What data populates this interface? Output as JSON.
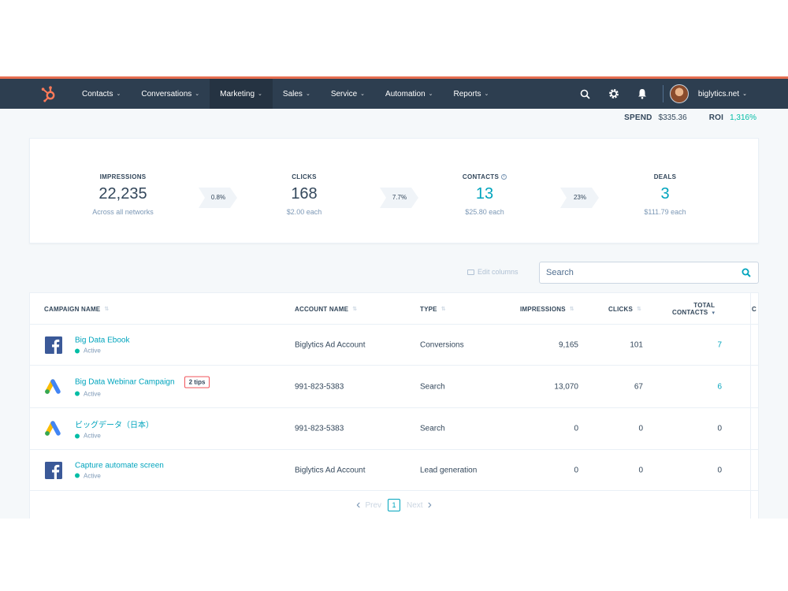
{
  "nav": {
    "items": [
      {
        "label": "Contacts",
        "active": false
      },
      {
        "label": "Conversations",
        "active": false
      },
      {
        "label": "Marketing",
        "active": true
      },
      {
        "label": "Sales",
        "active": false
      },
      {
        "label": "Service",
        "active": false
      },
      {
        "label": "Automation",
        "active": false
      },
      {
        "label": "Reports",
        "active": false
      }
    ],
    "account": "biglytics.net",
    "icons": [
      "hubspot-logo-icon",
      "search-icon",
      "gear-icon",
      "bell-icon",
      "avatar"
    ]
  },
  "spend": {
    "spend_label": "SPEND",
    "spend_value": "$335.36",
    "roi_label": "ROI",
    "roi_value": "1,316%"
  },
  "funnel": {
    "metrics": [
      {
        "label": "IMPRESSIONS",
        "value": "22,235",
        "sub": "Across all networks"
      },
      {
        "label": "CLICKS",
        "value": "168",
        "sub": "$2.00 each"
      },
      {
        "label": "CONTACTS",
        "value": "13",
        "sub": "$25.80 each"
      },
      {
        "label": "DEALS",
        "value": "3",
        "sub": "$111.79 each"
      }
    ],
    "rates": [
      "0.8%",
      "7.7%",
      "23%"
    ]
  },
  "toolbar": {
    "edit_columns": "Edit columns",
    "search_placeholder": "Search"
  },
  "table": {
    "columns": {
      "campaign": "CAMPAIGN NAME",
      "account": "ACCOUNT NAME",
      "type": "TYPE",
      "impressions": "IMPRESSIONS",
      "clicks": "CLICKS",
      "total_contacts_1": "TOTAL",
      "total_contacts_2": "CONTACTS",
      "extra": "C"
    },
    "rows": [
      {
        "network": "facebook",
        "name": "Big Data Ebook",
        "status": "Active",
        "tips": "",
        "account": "Biglytics Ad Account",
        "type": "Conversions",
        "impressions": "9,165",
        "clicks": "101",
        "contacts": "7"
      },
      {
        "network": "google-ads",
        "name": "Big Data Webinar Campaign",
        "status": "Active",
        "tips": "2 tips",
        "account": "991-823-5383",
        "type": "Search",
        "impressions": "13,070",
        "clicks": "67",
        "contacts": "6"
      },
      {
        "network": "google-ads",
        "name": "ビッグデータ（日本）",
        "status": "Active",
        "tips": "",
        "account": "991-823-5383",
        "type": "Search",
        "impressions": "0",
        "clicks": "0",
        "contacts": "0"
      },
      {
        "network": "facebook",
        "name": "Capture automate screen",
        "status": "Active",
        "tips": "",
        "account": "Biglytics Ad Account",
        "type": "Lead generation",
        "impressions": "0",
        "clicks": "0",
        "contacts": "0"
      }
    ]
  },
  "pager": {
    "prev": "Prev",
    "page": "1",
    "next": "Next"
  },
  "colors": {
    "nav_bg": "#2d3e50",
    "accent": "#00a4bd",
    "active_green": "#00bda5",
    "brand_orange": "#ff7a59"
  }
}
